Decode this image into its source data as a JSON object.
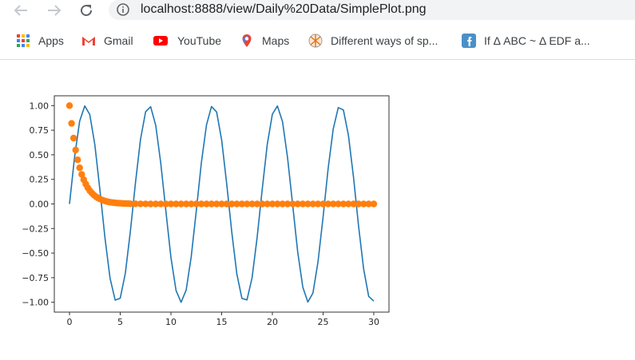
{
  "browser": {
    "back_icon": "arrow-left",
    "forward_icon": "arrow-right",
    "reload_icon": "reload",
    "info_icon": "info-circle",
    "url": "localhost:8888/view/Daily%20Data/SimplePlot.png"
  },
  "bookmarks": [
    {
      "label": "Apps",
      "icon": "apps-grid"
    },
    {
      "label": "Gmail",
      "icon": "gmail-logo"
    },
    {
      "label": "YouTube",
      "icon": "youtube-logo"
    },
    {
      "label": "Maps",
      "icon": "maps-pin"
    },
    {
      "label": "Different ways of sp...",
      "icon": "compass-globe"
    },
    {
      "label": "If Δ ABC ~ Δ EDF a...",
      "icon": "facebook-logo"
    }
  ],
  "colors": {
    "series_sin": "#1f77b4",
    "series_exp": "#ff7f0e"
  },
  "chart_data": {
    "type": "line",
    "title": "",
    "xlabel": "",
    "ylabel": "",
    "xlim": [
      -1.5,
      31.5
    ],
    "ylim": [
      -1.1,
      1.1
    ],
    "xticks": [
      0,
      5,
      10,
      15,
      20,
      25,
      30
    ],
    "xtick_labels": [
      "0",
      "5",
      "10",
      "15",
      "20",
      "25",
      "30"
    ],
    "yticks": [
      1.0,
      0.75,
      0.5,
      0.25,
      0.0,
      -0.25,
      -0.5,
      -0.75,
      -1.0
    ],
    "ytick_labels": [
      "1.00",
      "0.75",
      "0.50",
      "0.25",
      "0.00",
      "−0.25",
      "−0.50",
      "−0.75",
      "−1.00"
    ],
    "grid": false,
    "series": [
      {
        "style": "line",
        "x": [
          0,
          0.5,
          1,
          1.5,
          2,
          2.5,
          3,
          3.5,
          4,
          4.5,
          5,
          5.5,
          6,
          6.5,
          7,
          7.5,
          8,
          8.5,
          9,
          9.5,
          10,
          10.5,
          11,
          11.5,
          12,
          12.5,
          13,
          13.5,
          14,
          14.5,
          15,
          15.5,
          16,
          16.5,
          17,
          17.5,
          18,
          18.5,
          19,
          19.5,
          20,
          20.5,
          21,
          21.5,
          22,
          22.5,
          23,
          23.5,
          24,
          24.5,
          25,
          25.5,
          26,
          26.5,
          27,
          27.5,
          28,
          28.5,
          29,
          29.5,
          30
        ],
        "y": [
          0,
          0.479,
          0.841,
          0.997,
          0.909,
          0.598,
          0.141,
          -0.351,
          -0.757,
          -0.978,
          -0.959,
          -0.706,
          -0.279,
          0.215,
          0.657,
          0.938,
          0.989,
          0.798,
          0.412,
          -0.075,
          -0.544,
          -0.88,
          -1.0,
          -0.875,
          -0.537,
          -0.066,
          0.42,
          0.803,
          0.991,
          0.935,
          0.65,
          0.206,
          -0.288,
          -0.712,
          -0.961,
          -0.976,
          -0.751,
          -0.342,
          0.15,
          0.605,
          0.913,
          0.996,
          0.837,
          0.472,
          -0.009,
          -0.487,
          -0.846,
          -0.998,
          -0.906,
          -0.59,
          -0.132,
          0.359,
          0.763,
          0.98,
          0.956,
          0.699,
          0.271,
          -0.224,
          -0.664,
          -0.94,
          -0.988
        ]
      },
      {
        "style": "scatter",
        "x": [
          0,
          0.2,
          0.4,
          0.6,
          0.8,
          1.0,
          1.2,
          1.4,
          1.6,
          1.8,
          2.0,
          2.2,
          2.4,
          2.6,
          2.8,
          3.0,
          3.2,
          3.4,
          3.6,
          3.8,
          4.0,
          4.2,
          4.4,
          4.6,
          4.8,
          5.0,
          5.2,
          5.4,
          5.6,
          5.8,
          6.0,
          6.5,
          7.0,
          7.5,
          8.0,
          8.5,
          9.0,
          9.5,
          10.0,
          10.5,
          11.0,
          11.5,
          12.0,
          12.5,
          13.0,
          13.5,
          14.0,
          14.5,
          15.0,
          15.5,
          16.0,
          16.5,
          17.0,
          17.5,
          18.0,
          18.5,
          19.0,
          19.5,
          20.0,
          20.5,
          21.0,
          21.5,
          22.0,
          22.5,
          23.0,
          23.5,
          24.0,
          24.5,
          25.0,
          25.5,
          26.0,
          26.5,
          27.0,
          27.5,
          28.0,
          28.5,
          29.0,
          29.5,
          30.0
        ],
        "y": [
          1.0,
          0.819,
          0.67,
          0.549,
          0.449,
          0.368,
          0.301,
          0.247,
          0.202,
          0.165,
          0.135,
          0.111,
          0.091,
          0.074,
          0.061,
          0.05,
          0.041,
          0.033,
          0.027,
          0.022,
          0.018,
          0.015,
          0.012,
          0.01,
          0.008,
          0.007,
          0.006,
          0.005,
          0.004,
          0.003,
          0.002,
          0.002,
          0.001,
          0.001,
          0,
          0,
          0,
          0,
          0,
          0,
          0,
          0,
          0,
          0,
          0,
          0,
          0,
          0,
          0,
          0,
          0,
          0,
          0,
          0,
          0,
          0,
          0,
          0,
          0,
          0,
          0,
          0,
          0,
          0,
          0,
          0,
          0,
          0,
          0,
          0,
          0,
          0,
          0,
          0,
          0,
          0,
          0,
          0,
          0
        ]
      }
    ]
  }
}
